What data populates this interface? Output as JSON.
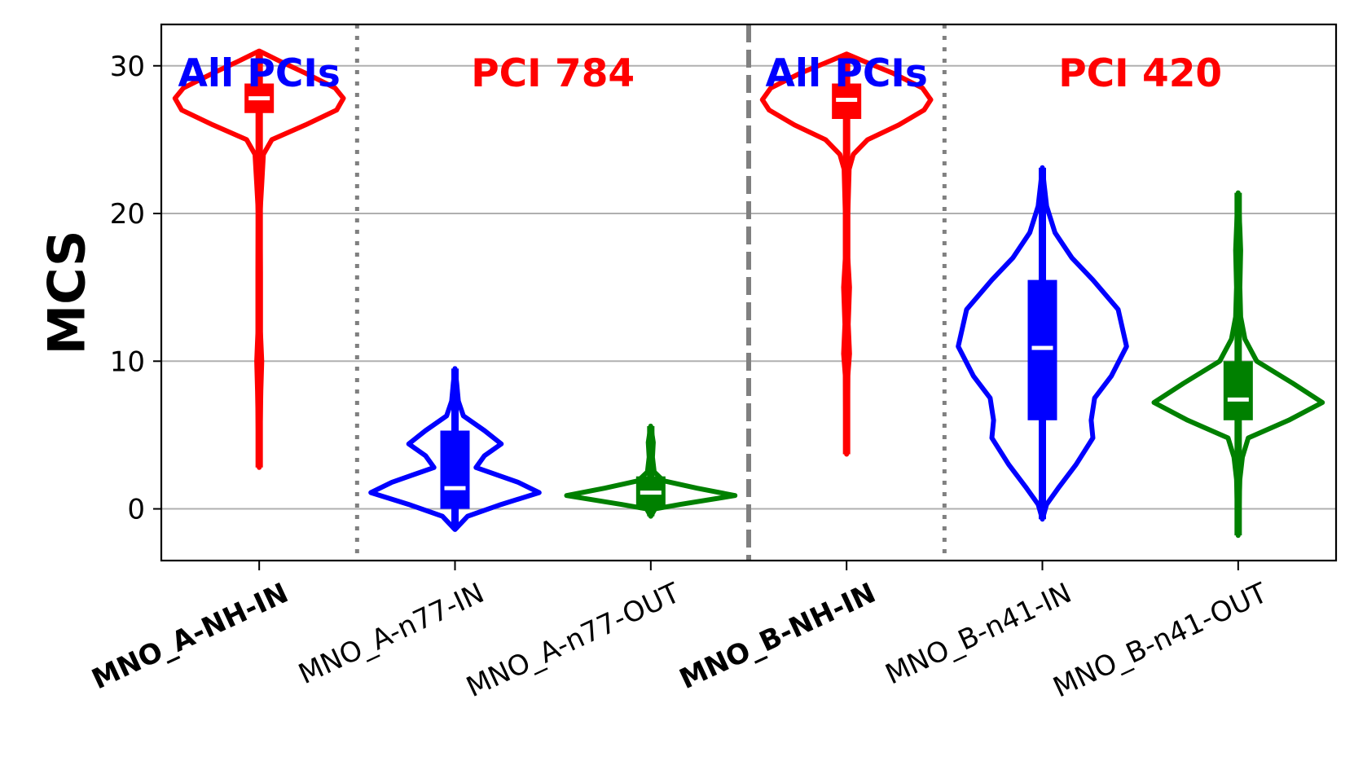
{
  "chart_data": {
    "type": "violin",
    "ylabel": "MCS",
    "xlabel": "",
    "ylim": [
      -3.5,
      32.8
    ],
    "yticks": [
      0,
      10,
      20,
      30
    ],
    "grid": "y",
    "categories": [
      "MNO_A-NH-IN",
      "MNO_A-n77-IN",
      "MNO_A-n77-OUT",
      "MNO_B-NH-IN",
      "MNO_B-n41-IN",
      "MNO_B-n41-OUT"
    ],
    "bold_categories": [
      "MNO_A-NH-IN",
      "MNO_B-NH-IN"
    ],
    "annotations": [
      {
        "text": "All PCIs",
        "color": "#0000ff",
        "category_index": 0,
        "y": 29.5
      },
      {
        "text": "PCI 784",
        "color": "#ff0000",
        "category_index": 1.5,
        "y": 29.5
      },
      {
        "text": "All PCIs",
        "color": "#0000ff",
        "category_index": 3,
        "y": 29.5
      },
      {
        "text": "PCI 420",
        "color": "#ff0000",
        "category_index": 4.5,
        "y": 29.5
      }
    ],
    "separators": [
      {
        "after_index": 0,
        "style": "dotted"
      },
      {
        "after_index": 2,
        "style": "dashed"
      },
      {
        "after_index": 3,
        "style": "dotted"
      }
    ],
    "series": [
      {
        "category": "MNO_A-NH-IN",
        "color": "#ff0000",
        "median": 27.8,
        "q1": 26.8,
        "q3": 28.8,
        "min": 2.8,
        "max": 31.0,
        "profile": [
          [
            2.8,
            0.0
          ],
          [
            5,
            0.01
          ],
          [
            8,
            0.02
          ],
          [
            10,
            0.03
          ],
          [
            12,
            0.015
          ],
          [
            16,
            0.015
          ],
          [
            20,
            0.01
          ],
          [
            22,
            0.03
          ],
          [
            24,
            0.05
          ],
          [
            25,
            0.15
          ],
          [
            26,
            0.55
          ],
          [
            27,
            0.92
          ],
          [
            27.8,
            1.0
          ],
          [
            28.5,
            0.9
          ],
          [
            29.5,
            0.55
          ],
          [
            30.3,
            0.25
          ],
          [
            31.0,
            0.0
          ]
        ]
      },
      {
        "category": "MNO_A-n77-IN",
        "color": "#0000ff",
        "median": 1.4,
        "q1": 0.0,
        "q3": 5.3,
        "min": -1.4,
        "max": 9.5,
        "profile": [
          [
            -1.4,
            0.0
          ],
          [
            -0.5,
            0.15
          ],
          [
            0.3,
            0.55
          ],
          [
            1.1,
            1.0
          ],
          [
            1.8,
            0.75
          ],
          [
            2.8,
            0.25
          ],
          [
            3.6,
            0.35
          ],
          [
            4.4,
            0.55
          ],
          [
            5.3,
            0.35
          ],
          [
            6.3,
            0.1
          ],
          [
            7.3,
            0.04
          ],
          [
            8.5,
            0.02
          ],
          [
            9.5,
            0.0
          ]
        ]
      },
      {
        "category": "MNO_A-n77-OUT",
        "color": "#008000",
        "median": 1.1,
        "q1": 0.0,
        "q3": 2.2,
        "min": -0.5,
        "max": 5.6,
        "profile": [
          [
            -0.5,
            0.0
          ],
          [
            0.0,
            0.05
          ],
          [
            0.3,
            0.35
          ],
          [
            0.9,
            1.0
          ],
          [
            1.4,
            0.55
          ],
          [
            1.9,
            0.15
          ],
          [
            2.5,
            0.04
          ],
          [
            3.5,
            0.02
          ],
          [
            4.5,
            0.03
          ],
          [
            5.6,
            0.0
          ]
        ]
      },
      {
        "category": "MNO_B-NH-IN",
        "color": "#ff0000",
        "median": 27.7,
        "q1": 26.4,
        "q3": 28.8,
        "min": 3.7,
        "max": 30.8,
        "profile": [
          [
            3.7,
            0.0
          ],
          [
            6,
            0.01
          ],
          [
            9,
            0.015
          ],
          [
            10.5,
            0.035
          ],
          [
            12.5,
            0.02
          ],
          [
            15,
            0.035
          ],
          [
            17,
            0.015
          ],
          [
            20,
            0.015
          ],
          [
            23,
            0.03
          ],
          [
            24,
            0.08
          ],
          [
            25,
            0.25
          ],
          [
            26,
            0.62
          ],
          [
            27,
            0.92
          ],
          [
            27.7,
            1.0
          ],
          [
            28.5,
            0.9
          ],
          [
            29.5,
            0.55
          ],
          [
            30.2,
            0.25
          ],
          [
            30.8,
            0.0
          ]
        ]
      },
      {
        "category": "MNO_B-n41-IN",
        "color": "#0000ff",
        "median": 10.9,
        "q1": 6.0,
        "q3": 15.5,
        "min": -0.7,
        "max": 23.1,
        "profile": [
          [
            -0.7,
            0.0
          ],
          [
            0.3,
            0.05
          ],
          [
            1.5,
            0.2
          ],
          [
            3,
            0.4
          ],
          [
            4.8,
            0.6
          ],
          [
            6,
            0.58
          ],
          [
            7.5,
            0.62
          ],
          [
            9,
            0.82
          ],
          [
            11,
            1.0
          ],
          [
            13.5,
            0.9
          ],
          [
            15.5,
            0.6
          ],
          [
            17,
            0.35
          ],
          [
            18.7,
            0.15
          ],
          [
            20.5,
            0.05
          ],
          [
            22,
            0.02
          ],
          [
            23.1,
            0.0
          ]
        ]
      },
      {
        "category": "MNO_B-n41-OUT",
        "color": "#008000",
        "median": 7.4,
        "q1": 6.0,
        "q3": 10.0,
        "min": -1.8,
        "max": 21.4,
        "profile": [
          [
            -1.8,
            0.0
          ],
          [
            0,
            0.01
          ],
          [
            2,
            0.02
          ],
          [
            3.5,
            0.05
          ],
          [
            4.8,
            0.12
          ],
          [
            6,
            0.6
          ],
          [
            7.2,
            1.0
          ],
          [
            8.5,
            0.65
          ],
          [
            10,
            0.22
          ],
          [
            11.5,
            0.08
          ],
          [
            13,
            0.03
          ],
          [
            15,
            0.02
          ],
          [
            17.5,
            0.03
          ],
          [
            19,
            0.02
          ],
          [
            21.4,
            0.0
          ]
        ]
      }
    ]
  }
}
